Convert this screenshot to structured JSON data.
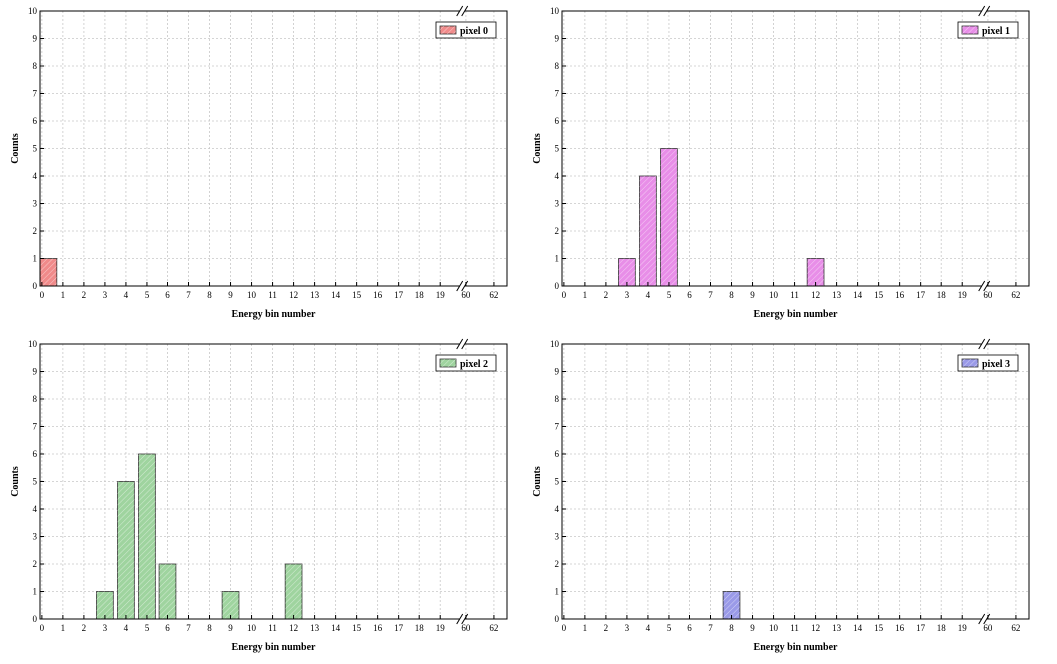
{
  "chart_data": [
    {
      "type": "bar",
      "legend": "pixel 0",
      "legend_position": "top-right",
      "color": "#f08a8a",
      "xlabel": "Energy bin number",
      "ylabel": "Counts",
      "ylim": [
        0,
        10
      ],
      "grid": true,
      "x_ticks": [
        "0",
        "1",
        "2",
        "3",
        "4",
        "5",
        "6",
        "7",
        "8",
        "9",
        "10",
        "11",
        "12",
        "13",
        "14",
        "15",
        "16",
        "17",
        "18",
        "19",
        "60",
        "62"
      ],
      "y_ticks": [
        "0",
        "1",
        "2",
        "3",
        "4",
        "5",
        "6",
        "7",
        "8",
        "9",
        "10"
      ],
      "bars": [
        {
          "x": "0",
          "value": 1
        }
      ]
    },
    {
      "type": "bar",
      "legend": "pixel 1",
      "legend_position": "top-right",
      "color": "#e88ee8",
      "xlabel": "Energy bin number",
      "ylabel": "Counts",
      "ylim": [
        0,
        10
      ],
      "grid": true,
      "x_ticks": [
        "0",
        "1",
        "2",
        "3",
        "4",
        "5",
        "6",
        "7",
        "8",
        "9",
        "10",
        "11",
        "12",
        "13",
        "14",
        "15",
        "16",
        "17",
        "18",
        "19",
        "60",
        "62"
      ],
      "y_ticks": [
        "0",
        "1",
        "2",
        "3",
        "4",
        "5",
        "6",
        "7",
        "8",
        "9",
        "10"
      ],
      "bars": [
        {
          "x": "3",
          "value": 1
        },
        {
          "x": "4",
          "value": 4
        },
        {
          "x": "5",
          "value": 5
        },
        {
          "x": "12",
          "value": 1
        }
      ]
    },
    {
      "type": "bar",
      "legend": "pixel 2",
      "legend_position": "top-right",
      "color": "#9fd49f",
      "xlabel": "Energy bin number",
      "ylabel": "Counts",
      "ylim": [
        0,
        10
      ],
      "grid": true,
      "x_ticks": [
        "0",
        "1",
        "2",
        "3",
        "4",
        "5",
        "6",
        "7",
        "8",
        "9",
        "10",
        "11",
        "12",
        "13",
        "14",
        "15",
        "16",
        "17",
        "18",
        "19",
        "60",
        "62"
      ],
      "y_ticks": [
        "0",
        "1",
        "2",
        "3",
        "4",
        "5",
        "6",
        "7",
        "8",
        "9",
        "10"
      ],
      "bars": [
        {
          "x": "3",
          "value": 1
        },
        {
          "x": "4",
          "value": 5
        },
        {
          "x": "5",
          "value": 6
        },
        {
          "x": "6",
          "value": 2
        },
        {
          "x": "9",
          "value": 1
        },
        {
          "x": "12",
          "value": 2
        }
      ]
    },
    {
      "type": "bar",
      "legend": "pixel 3",
      "legend_position": "top-right",
      "color": "#9a9ae8",
      "xlabel": "Energy bin number",
      "ylabel": "Counts",
      "ylim": [
        0,
        10
      ],
      "grid": true,
      "x_ticks": [
        "0",
        "1",
        "2",
        "3",
        "4",
        "5",
        "6",
        "7",
        "8",
        "9",
        "10",
        "11",
        "12",
        "13",
        "14",
        "15",
        "16",
        "17",
        "18",
        "19",
        "60",
        "62"
      ],
      "y_ticks": [
        "0",
        "1",
        "2",
        "3",
        "4",
        "5",
        "6",
        "7",
        "8",
        "9",
        "10"
      ],
      "bars": [
        {
          "x": "8",
          "value": 1
        }
      ]
    }
  ]
}
